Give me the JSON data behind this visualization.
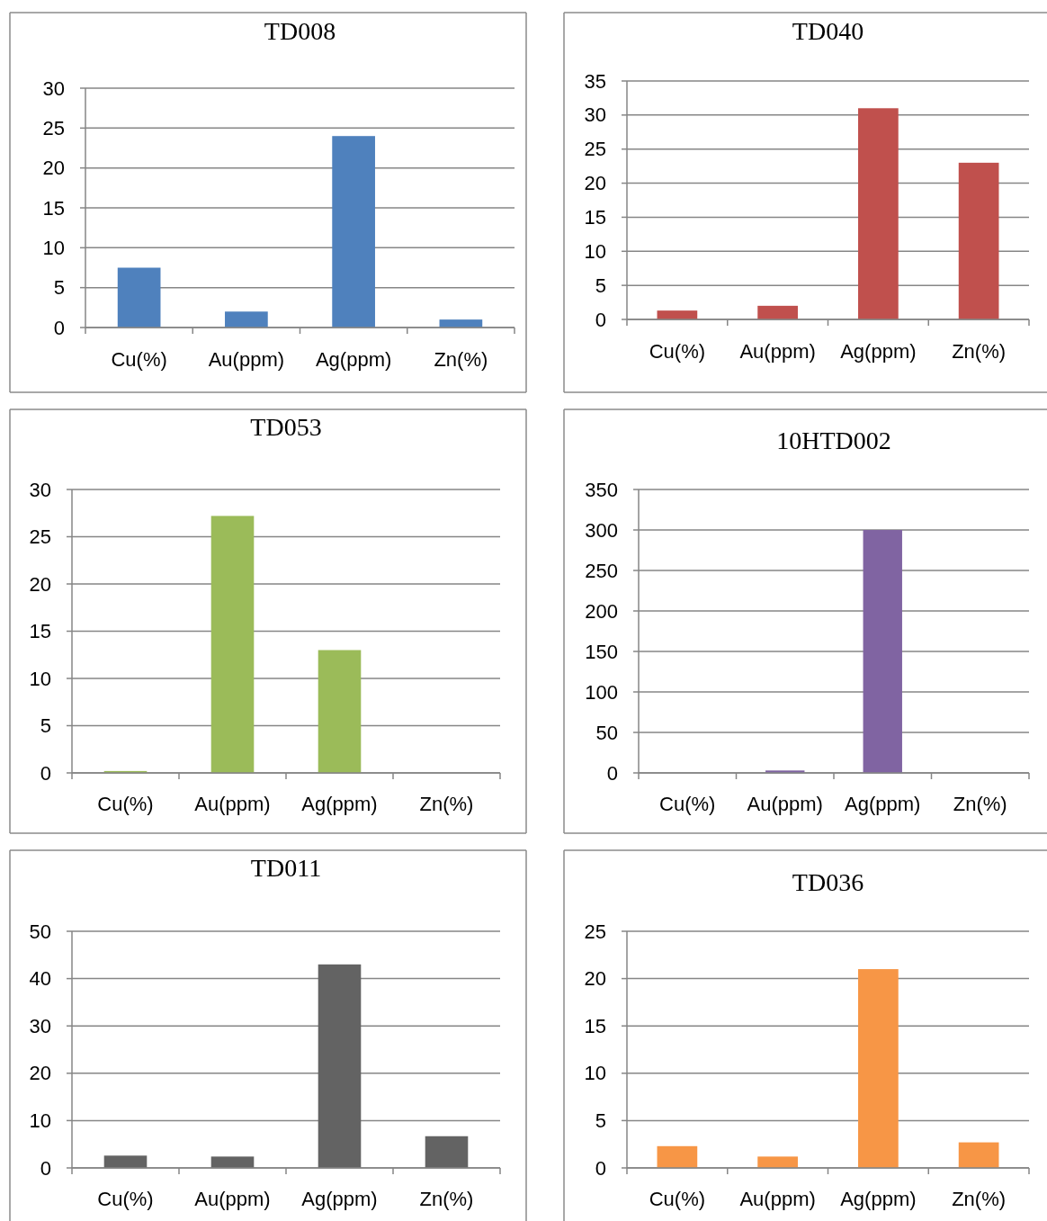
{
  "chart_data": [
    {
      "type": "bar",
      "title": "TD008",
      "categories": [
        "Cu(%)",
        "Au(ppm)",
        "Ag(ppm)",
        "Zn(%)"
      ],
      "values": [
        7.5,
        2,
        24,
        1
      ],
      "color": "#4f81bd",
      "ylim": [
        0,
        30
      ],
      "yticks": [
        0,
        5,
        10,
        15,
        20,
        25,
        30
      ],
      "grid": "y"
    },
    {
      "type": "bar",
      "title": "TD040",
      "categories": [
        "Cu(%)",
        "Au(ppm)",
        "Ag(ppm)",
        "Zn(%)"
      ],
      "values": [
        1.3,
        2,
        31,
        23
      ],
      "color": "#c0504d",
      "ylim": [
        0,
        35
      ],
      "yticks": [
        0,
        5,
        10,
        15,
        20,
        25,
        30,
        35
      ],
      "grid": "y"
    },
    {
      "type": "bar",
      "title": "TD053",
      "categories": [
        "Cu(%)",
        "Au(ppm)",
        "Ag(ppm)",
        "Zn(%)"
      ],
      "values": [
        0.2,
        27.2,
        13,
        0
      ],
      "color": "#9bbb59",
      "ylim": [
        0,
        30
      ],
      "yticks": [
        0,
        5,
        10,
        15,
        20,
        25,
        30
      ],
      "grid": "y"
    },
    {
      "type": "bar",
      "title": "10HTD002",
      "categories": [
        "Cu(%)",
        "Au(ppm)",
        "Ag(ppm)",
        "Zn(%)"
      ],
      "values": [
        0,
        3,
        300,
        0
      ],
      "color": "#8064a2",
      "ylim": [
        0,
        350
      ],
      "yticks": [
        0,
        50,
        100,
        150,
        200,
        250,
        300,
        350
      ],
      "grid": "y"
    },
    {
      "type": "bar",
      "title": "TD011",
      "categories": [
        "Cu(%)",
        "Au(ppm)",
        "Ag(ppm)",
        "Zn(%)"
      ],
      "values": [
        2.6,
        2.4,
        43,
        6.7
      ],
      "color": "#636363",
      "ylim": [
        0,
        50
      ],
      "yticks": [
        0,
        10,
        20,
        30,
        40,
        50
      ],
      "grid": "y"
    },
    {
      "type": "bar",
      "title": "TD036",
      "categories": [
        "Cu(%)",
        "Au(ppm)",
        "Ag(ppm)",
        "Zn(%)"
      ],
      "values": [
        2.3,
        1.2,
        21,
        2.7
      ],
      "color": "#f79646",
      "ylim": [
        0,
        25
      ],
      "yticks": [
        0,
        5,
        10,
        15,
        20,
        25
      ],
      "grid": "y"
    }
  ]
}
